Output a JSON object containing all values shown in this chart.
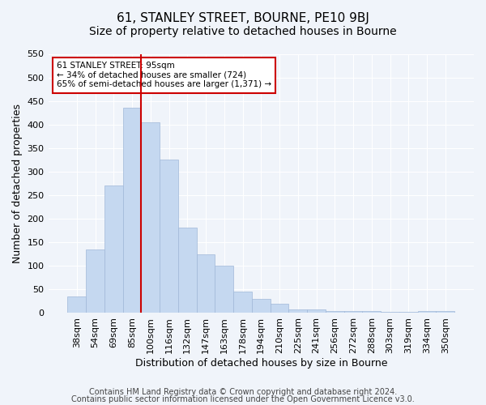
{
  "title": "61, STANLEY STREET, BOURNE, PE10 9BJ",
  "subtitle": "Size of property relative to detached houses in Bourne",
  "xlabel": "Distribution of detached houses by size in Bourne",
  "ylabel": "Number of detached properties",
  "categories": [
    "38sqm",
    "54sqm",
    "69sqm",
    "85sqm",
    "100sqm",
    "116sqm",
    "132sqm",
    "147sqm",
    "163sqm",
    "178sqm",
    "194sqm",
    "210sqm",
    "225sqm",
    "241sqm",
    "256sqm",
    "272sqm",
    "288sqm",
    "303sqm",
    "319sqm",
    "334sqm",
    "350sqm"
  ],
  "values": [
    35,
    135,
    270,
    435,
    405,
    325,
    182,
    125,
    100,
    46,
    30,
    20,
    8,
    8,
    5,
    5,
    4,
    3,
    3,
    5,
    4
  ],
  "bar_color": "#c5d8f0",
  "bar_edge_color": "#a0b8d8",
  "redline_index": 4,
  "annotation_title": "61 STANLEY STREET: 95sqm",
  "annotation_line1": "← 34% of detached houses are smaller (724)",
  "annotation_line2": "65% of semi-detached houses are larger (1,371) →",
  "annotation_box_color": "#ffffff",
  "annotation_box_edge": "#cc0000",
  "redline_color": "#cc0000",
  "ylim": [
    0,
    550
  ],
  "yticks": [
    0,
    50,
    100,
    150,
    200,
    250,
    300,
    350,
    400,
    450,
    500,
    550
  ],
  "footer1": "Contains HM Land Registry data © Crown copyright and database right 2024.",
  "footer2": "Contains public sector information licensed under the Open Government Licence v3.0.",
  "bg_color": "#f0f4fa",
  "grid_color": "#ffffff",
  "title_fontsize": 11,
  "subtitle_fontsize": 10,
  "axis_label_fontsize": 9,
  "tick_fontsize": 8,
  "footer_fontsize": 7
}
